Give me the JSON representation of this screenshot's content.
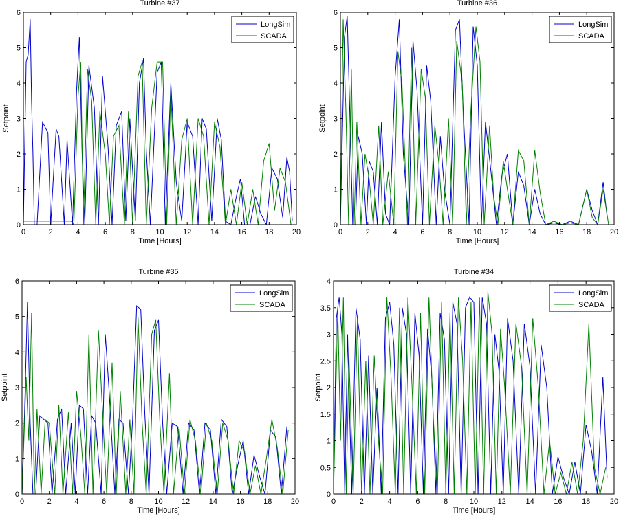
{
  "colors": {
    "longsim": "#0000CC",
    "scada": "#008000",
    "axis": "#000000",
    "background": "#ffffff"
  },
  "chart_data": [
    {
      "type": "line",
      "title": "Turbine #37",
      "xlabel": "Time [Hours]",
      "ylabel": "Setpoint",
      "xlim": [
        0,
        20
      ],
      "ylim": [
        0,
        6
      ],
      "xticks": [
        0,
        2,
        4,
        6,
        8,
        10,
        12,
        14,
        16,
        18,
        20
      ],
      "yticks": [
        0,
        1,
        2,
        3,
        4,
        5,
        6
      ],
      "ytick_labels": [
        "0",
        "1",
        "2",
        "3",
        "4",
        "5",
        "6"
      ],
      "legend": {
        "entries": [
          "LongSim",
          "SCADA"
        ],
        "position": "top-right"
      },
      "series": [
        {
          "name": "LongSim",
          "x": [
            0,
            0.2,
            0.35,
            0.5,
            0.6,
            0.7,
            0.8,
            1.0,
            1.4,
            1.8,
            2.0,
            2.4,
            2.6,
            3.0,
            3.2,
            3.6,
            3.9,
            4.1,
            4.3,
            4.5,
            4.8,
            5.2,
            5.5,
            5.8,
            6.2,
            6.5,
            6.8,
            7.2,
            7.5,
            7.8,
            8.2,
            8.5,
            8.8,
            9.0,
            9.3,
            9.8,
            10.1,
            10.4,
            10.8,
            11.2,
            11.6,
            12.0,
            12.4,
            12.8,
            13.1,
            13.4,
            13.8,
            14.2,
            14.5,
            14.8,
            15.2,
            15.6,
            15.9,
            16.2,
            16.6,
            17.0,
            17.4,
            17.8,
            18.2,
            18.6,
            19.0,
            19.3,
            19.5,
            19.7
          ],
          "y": [
            0,
            4.6,
            4.8,
            5.8,
            3.5,
            2.0,
            0,
            0,
            2.9,
            2.6,
            0,
            2.7,
            2.5,
            0,
            2.4,
            0,
            3.8,
            5.3,
            2.0,
            0,
            4.5,
            3.3,
            0,
            4.2,
            2.2,
            0,
            2.8,
            3.2,
            0.1,
            3.0,
            0.1,
            4.0,
            4.7,
            2.1,
            0,
            4.3,
            4.6,
            0,
            4.0,
            1.2,
            0.1,
            2.9,
            2.5,
            0,
            3.0,
            2.7,
            0.1,
            3.0,
            2.4,
            0.1,
            0,
            0.8,
            1.3,
            0,
            0,
            0.8,
            0.3,
            0,
            1.6,
            1.3,
            0.2,
            1.9,
            1.5,
            0.1
          ]
        },
        {
          "name": "SCADA",
          "x": [
            0,
            3.5,
            3.7,
            4.0,
            4.2,
            4.4,
            4.7,
            5.0,
            5.3,
            5.6,
            6.0,
            6.3,
            6.6,
            7.0,
            7.4,
            7.7,
            8.0,
            8.4,
            8.7,
            9.0,
            9.4,
            9.8,
            10.2,
            10.5,
            10.8,
            11.2,
            11.6,
            12.0,
            12.4,
            12.8,
            13.2,
            13.6,
            14.0,
            14.4,
            14.8,
            15.2,
            15.6,
            16.0,
            16.4,
            16.8,
            17.2,
            17.6,
            18.0,
            18.4,
            18.8,
            19.2,
            19.6
          ],
          "y": [
            0.1,
            0.1,
            0,
            3.6,
            4.6,
            0,
            4.4,
            3.5,
            0,
            3.2,
            2.0,
            0,
            2.5,
            2.8,
            0,
            3.2,
            0,
            4.2,
            4.6,
            0,
            3.3,
            4.6,
            4.6,
            0,
            3.8,
            0,
            2.4,
            3.0,
            0,
            3.0,
            2.5,
            0,
            2.9,
            2.2,
            0,
            1.0,
            0,
            1.2,
            0,
            1.0,
            0,
            1.8,
            2.3,
            0.4,
            1.6,
            1.2,
            0
          ]
        }
      ]
    },
    {
      "type": "line",
      "title": "Turbine #36",
      "xlabel": "Time [Hours]",
      "ylabel": "Setpoint",
      "xlim": [
        0,
        20
      ],
      "ylim": [
        0,
        6
      ],
      "xticks": [
        0,
        2,
        4,
        6,
        8,
        10,
        12,
        14,
        16,
        18,
        20
      ],
      "yticks": [
        0,
        1,
        2,
        3,
        4,
        5,
        6
      ],
      "ytick_labels": [
        "0",
        "1",
        "2",
        "3",
        "4",
        "5",
        "6"
      ],
      "legend": {
        "entries": [
          "LongSim",
          "SCADA"
        ],
        "position": "top-right"
      },
      "series": [
        {
          "name": "LongSim",
          "x": [
            0,
            0.3,
            0.5,
            0.7,
            0.9,
            1.1,
            1.3,
            1.6,
            1.9,
            2.1,
            2.4,
            2.7,
            3.0,
            3.3,
            3.6,
            4.0,
            4.3,
            4.6,
            5.0,
            5.3,
            5.6,
            6.0,
            6.3,
            6.6,
            7.0,
            7.3,
            7.6,
            8.0,
            8.4,
            8.7,
            9.0,
            9.4,
            9.7,
            10.0,
            10.3,
            10.6,
            11.0,
            11.4,
            11.8,
            12.2,
            12.6,
            13.0,
            13.4,
            13.8,
            14.2,
            14.6,
            15.0,
            15.6,
            16.2,
            16.8,
            17.4,
            18.0,
            18.4,
            18.8,
            19.2,
            19.5
          ],
          "y": [
            0,
            5.3,
            5.9,
            3.0,
            0,
            0,
            2.5,
            2.0,
            0,
            1.8,
            1.5,
            0,
            2.9,
            0.3,
            0,
            4.2,
            5.8,
            2.0,
            0,
            5.2,
            3.8,
            0,
            4.5,
            3.5,
            0,
            2.5,
            1.0,
            0,
            5.5,
            5.8,
            3.0,
            0,
            5.6,
            4.5,
            0,
            2.9,
            1.5,
            0,
            1.4,
            2.0,
            0,
            1.5,
            1.1,
            0,
            1.0,
            0.3,
            0,
            0.05,
            0,
            0.1,
            0,
            1.0,
            0.4,
            0,
            1.2,
            0.2
          ]
        },
        {
          "name": "SCADA",
          "x": [
            0,
            0.2,
            0.4,
            0.6,
            0.8,
            1.0,
            1.2,
            1.5,
            1.8,
            2.1,
            2.4,
            2.8,
            3.1,
            3.5,
            3.9,
            4.2,
            4.5,
            4.9,
            5.2,
            5.5,
            5.9,
            6.2,
            6.5,
            6.9,
            7.2,
            7.5,
            7.9,
            8.2,
            8.5,
            8.9,
            9.2,
            9.5,
            9.9,
            10.2,
            10.5,
            10.9,
            11.2,
            11.5,
            11.9,
            12.2,
            12.6,
            13.0,
            13.4,
            13.8,
            14.2,
            14.6,
            15.0,
            15.6,
            16.2,
            16.8,
            17.4,
            18.0,
            18.4,
            18.8,
            19.2,
            19.6
          ],
          "y": [
            0,
            5.8,
            3.2,
            0,
            4.4,
            0,
            2.9,
            0,
            2.0,
            1.3,
            0,
            2.8,
            0,
            1.5,
            0,
            4.9,
            4.0,
            0,
            5.0,
            0,
            4.4,
            3.6,
            0,
            2.8,
            1.7,
            0,
            3.0,
            0,
            5.2,
            4.0,
            0,
            3.0,
            5.6,
            4.6,
            0,
            2.8,
            0.8,
            0,
            1.8,
            1.0,
            0,
            2.1,
            1.8,
            0,
            2.1,
            0.9,
            0,
            0.1,
            0,
            0.05,
            0,
            1.0,
            0.2,
            0,
            1.0,
            0
          ]
        }
      ]
    },
    {
      "type": "line",
      "title": "Turbine #35",
      "xlabel": "Time [Hours]",
      "ylabel": "Setpoint",
      "xlim": [
        0,
        20
      ],
      "ylim": [
        0,
        6
      ],
      "xticks": [
        0,
        2,
        4,
        6,
        8,
        10,
        12,
        14,
        16,
        18,
        20
      ],
      "yticks": [
        0,
        1,
        2,
        3,
        4,
        5,
        6
      ],
      "ytick_labels": [
        "0",
        "1",
        "2",
        "3",
        "4",
        "5",
        "6"
      ],
      "legend": {
        "entries": [
          "LongSim",
          "SCADA"
        ],
        "position": "top-right"
      },
      "series": [
        {
          "name": "LongSim",
          "x": [
            0,
            0.2,
            0.4,
            0.6,
            0.8,
            1.0,
            1.3,
            1.6,
            1.9,
            2.2,
            2.6,
            2.9,
            3.2,
            3.6,
            3.9,
            4.2,
            4.5,
            4.8,
            5.1,
            5.4,
            5.8,
            6.1,
            6.4,
            6.8,
            7.1,
            7.4,
            7.8,
            8.1,
            8.4,
            8.7,
            9.0,
            9.3,
            9.7,
            10.0,
            10.3,
            10.6,
            11.0,
            11.4,
            11.8,
            12.2,
            12.6,
            13.0,
            13.4,
            13.8,
            14.2,
            14.6,
            15.0,
            15.4,
            15.8,
            16.2,
            16.6,
            17.0,
            17.4,
            17.8,
            18.2,
            18.6,
            19.0,
            19.4
          ],
          "y": [
            0,
            2.5,
            5.4,
            2.0,
            0,
            0,
            2.2,
            2.1,
            2.0,
            0,
            2.1,
            2.4,
            0,
            2.0,
            0,
            2.5,
            2.4,
            0,
            2.2,
            2.0,
            0,
            4.5,
            2.8,
            0,
            2.1,
            2.0,
            0,
            2.1,
            5.3,
            5.2,
            2.2,
            0,
            4.6,
            4.9,
            2.0,
            0,
            2.0,
            1.9,
            0,
            2.0,
            1.8,
            0,
            2.0,
            1.8,
            0,
            2.1,
            1.9,
            0,
            0.8,
            1.5,
            0,
            1.1,
            0.5,
            0,
            1.8,
            1.6,
            0,
            1.9
          ]
        },
        {
          "name": "SCADA",
          "x": [
            0,
            0.3,
            0.5,
            0.7,
            0.9,
            1.1,
            1.4,
            1.7,
            2.0,
            2.4,
            2.7,
            3.0,
            3.4,
            3.7,
            4.0,
            4.3,
            4.6,
            4.9,
            5.2,
            5.6,
            5.9,
            6.2,
            6.6,
            6.9,
            7.2,
            7.6,
            7.9,
            8.2,
            8.5,
            8.8,
            9.1,
            9.5,
            9.8,
            10.1,
            10.4,
            10.8,
            11.1,
            11.5,
            11.9,
            12.3,
            12.7,
            13.1,
            13.5,
            13.9,
            14.3,
            14.7,
            15.1,
            15.5,
            15.9,
            16.3,
            16.7,
            17.1,
            17.5,
            17.9,
            18.3,
            18.7,
            19.1,
            19.5
          ],
          "y": [
            0,
            3.3,
            1.5,
            5.1,
            0,
            2.4,
            0,
            2.1,
            2.0,
            0,
            2.5,
            0,
            2.3,
            0,
            2.9,
            1.7,
            0,
            4.5,
            0,
            4.6,
            2.3,
            0,
            3.7,
            0,
            2.9,
            0,
            2.1,
            0,
            5.0,
            2.0,
            0,
            4.5,
            4.9,
            2.0,
            0,
            3.4,
            0,
            1.9,
            0,
            2.1,
            1.5,
            0,
            2.0,
            1.5,
            0,
            2.0,
            1.5,
            0,
            1.5,
            1.2,
            0,
            0.8,
            0,
            1.0,
            2.1,
            1.3,
            0,
            1.8
          ]
        }
      ]
    },
    {
      "type": "line",
      "title": "Turbine #34",
      "xlabel": "Time [Hours]",
      "ylabel": "Setpoint",
      "xlim": [
        0,
        20
      ],
      "ylim": [
        0,
        4
      ],
      "xticks": [
        0,
        2,
        4,
        6,
        8,
        10,
        12,
        14,
        16,
        18,
        20
      ],
      "yticks": [
        0,
        0.5,
        1,
        1.5,
        2,
        2.5,
        3,
        3.5,
        4
      ],
      "ytick_labels": [
        "0",
        "0.5",
        "1",
        "1.5",
        "2",
        "2.5",
        "3",
        "3.5",
        "4"
      ],
      "legend": {
        "entries": [
          "LongSim",
          "SCADA"
        ],
        "position": "top-right"
      },
      "series": [
        {
          "name": "LongSim",
          "x": [
            0,
            0.2,
            0.4,
            0.6,
            0.8,
            1.0,
            1.3,
            1.6,
            1.9,
            2.2,
            2.5,
            2.8,
            3.1,
            3.4,
            3.7,
            4.0,
            4.3,
            4.6,
            4.9,
            5.2,
            5.5,
            5.8,
            6.1,
            6.4,
            6.7,
            7.0,
            7.3,
            7.6,
            7.9,
            8.2,
            8.5,
            8.8,
            9.1,
            9.4,
            9.7,
            10.0,
            10.3,
            10.6,
            10.9,
            11.2,
            11.5,
            11.8,
            12.1,
            12.4,
            12.8,
            13.2,
            13.6,
            14.0,
            14.4,
            14.8,
            15.2,
            15.6,
            16.0,
            16.4,
            16.8,
            17.2,
            17.6,
            18.0,
            18.4,
            18.8,
            19.2,
            19.5
          ],
          "y": [
            0,
            3.3,
            3.7,
            3.0,
            0,
            3.0,
            0,
            3.5,
            2.9,
            0,
            2.6,
            0,
            2.0,
            0,
            3.3,
            3.6,
            2.8,
            0,
            3.5,
            3.0,
            0,
            3.4,
            2.6,
            0,
            3.1,
            2.2,
            0,
            3.4,
            2.9,
            0,
            3.6,
            3.2,
            0,
            3.5,
            3.7,
            3.6,
            0,
            3.7,
            3.2,
            0,
            3.0,
            2.3,
            0,
            3.3,
            2.5,
            0,
            3.2,
            2.4,
            0,
            2.8,
            2.0,
            0,
            0.7,
            0.3,
            0,
            0.6,
            0,
            1.3,
            0.8,
            0,
            2.2,
            0.3
          ]
        },
        {
          "name": "SCADA",
          "x": [
            0,
            0.3,
            0.5,
            0.7,
            0.9,
            1.1,
            1.4,
            1.7,
            2.0,
            2.3,
            2.6,
            2.9,
            3.2,
            3.5,
            3.8,
            4.1,
            4.4,
            4.7,
            5.0,
            5.3,
            5.6,
            5.9,
            6.2,
            6.5,
            6.8,
            7.1,
            7.4,
            7.7,
            8.0,
            8.3,
            8.6,
            8.9,
            9.2,
            9.5,
            9.8,
            10.1,
            10.4,
            10.7,
            11.0,
            11.3,
            11.6,
            11.9,
            12.2,
            12.6,
            13.0,
            13.4,
            13.8,
            14.2,
            14.6,
            15.0,
            15.4,
            15.8,
            16.2,
            16.6,
            17.0,
            17.4,
            17.8,
            18.2,
            18.6,
            19.0,
            19.4
          ],
          "y": [
            0,
            3.5,
            1.0,
            3.7,
            0,
            2.6,
            0,
            3.3,
            0,
            2.5,
            0,
            2.6,
            1.0,
            0,
            3.7,
            2.2,
            0,
            3.5,
            0,
            3.7,
            2.0,
            0,
            3.4,
            0,
            3.7,
            1.5,
            0,
            3.6,
            0,
            3.4,
            0,
            3.7,
            2.5,
            0,
            3.6,
            0,
            3.7,
            0,
            3.8,
            3.0,
            0,
            3.1,
            2.0,
            0,
            3.2,
            2.4,
            0,
            3.3,
            2.0,
            0,
            1.0,
            0,
            0.4,
            0,
            0.6,
            0,
            1.0,
            3.2,
            0.5,
            0,
            0.5
          ]
        }
      ]
    }
  ]
}
